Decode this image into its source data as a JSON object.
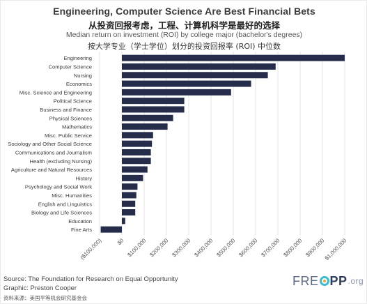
{
  "header": {
    "title_en": "Engineering, Computer Science Are Best Financial Bets",
    "title_cn": "从投资回报考虑，工程、计算机科学是最好的选择",
    "subtitle_en": "Median return on investment (ROI) by college major (bachelor's degrees)",
    "subtitle_cn": "按大学专业（学士学位）划分的投资回报率 (ROI) 中位数"
  },
  "footer": {
    "source": "Source: The Foundation for Research on Equal Opportunity",
    "graphic": "Graphic: Preston Cooper",
    "source_cn": "资料来源：美国平等机会研究基金会",
    "logo_free": "FRE",
    "logo_pp": "PP",
    "logo_org": ".org"
  },
  "colors": {
    "bar": "#252d4a",
    "grid": "#dcdcdc",
    "tick_text": "#555555"
  },
  "chart_data": {
    "type": "bar",
    "orientation": "horizontal",
    "categories": [
      "Engineering",
      "Computer Science",
      "Nursing",
      "Economics",
      "Misc. Science and Engineering",
      "Political Science",
      "Business and Finance",
      "Physical Sciences",
      "Mathematics",
      "Misc. Public Service",
      "Sociology and Other Social Science",
      "Communications and Journalism",
      "Health (excluding Nursing)",
      "Agriculture and Natural Resources",
      "History",
      "Psychology and Social Work",
      "Misc. Humanities",
      "English and Linguistics",
      "Biology and Life Sciences",
      "Education",
      "Fine Arts"
    ],
    "values": [
      1000000,
      690000,
      655000,
      580000,
      490000,
      280000,
      280000,
      230000,
      205000,
      140000,
      135000,
      130000,
      130000,
      115000,
      95000,
      70000,
      65000,
      60000,
      60000,
      15000,
      -95000
    ],
    "xlim": [
      -100000,
      1000000
    ],
    "xticks": [
      -100000,
      0,
      100000,
      200000,
      300000,
      400000,
      500000,
      600000,
      700000,
      800000,
      900000,
      1000000
    ],
    "xtick_labels": [
      "($100,000)",
      "$0",
      "$100,000",
      "$200,000",
      "$300,000",
      "$400,000",
      "$500,000",
      "$600,000",
      "$700,000",
      "$800,000",
      "$900,000",
      "$1,000,000"
    ],
    "grid": true
  }
}
